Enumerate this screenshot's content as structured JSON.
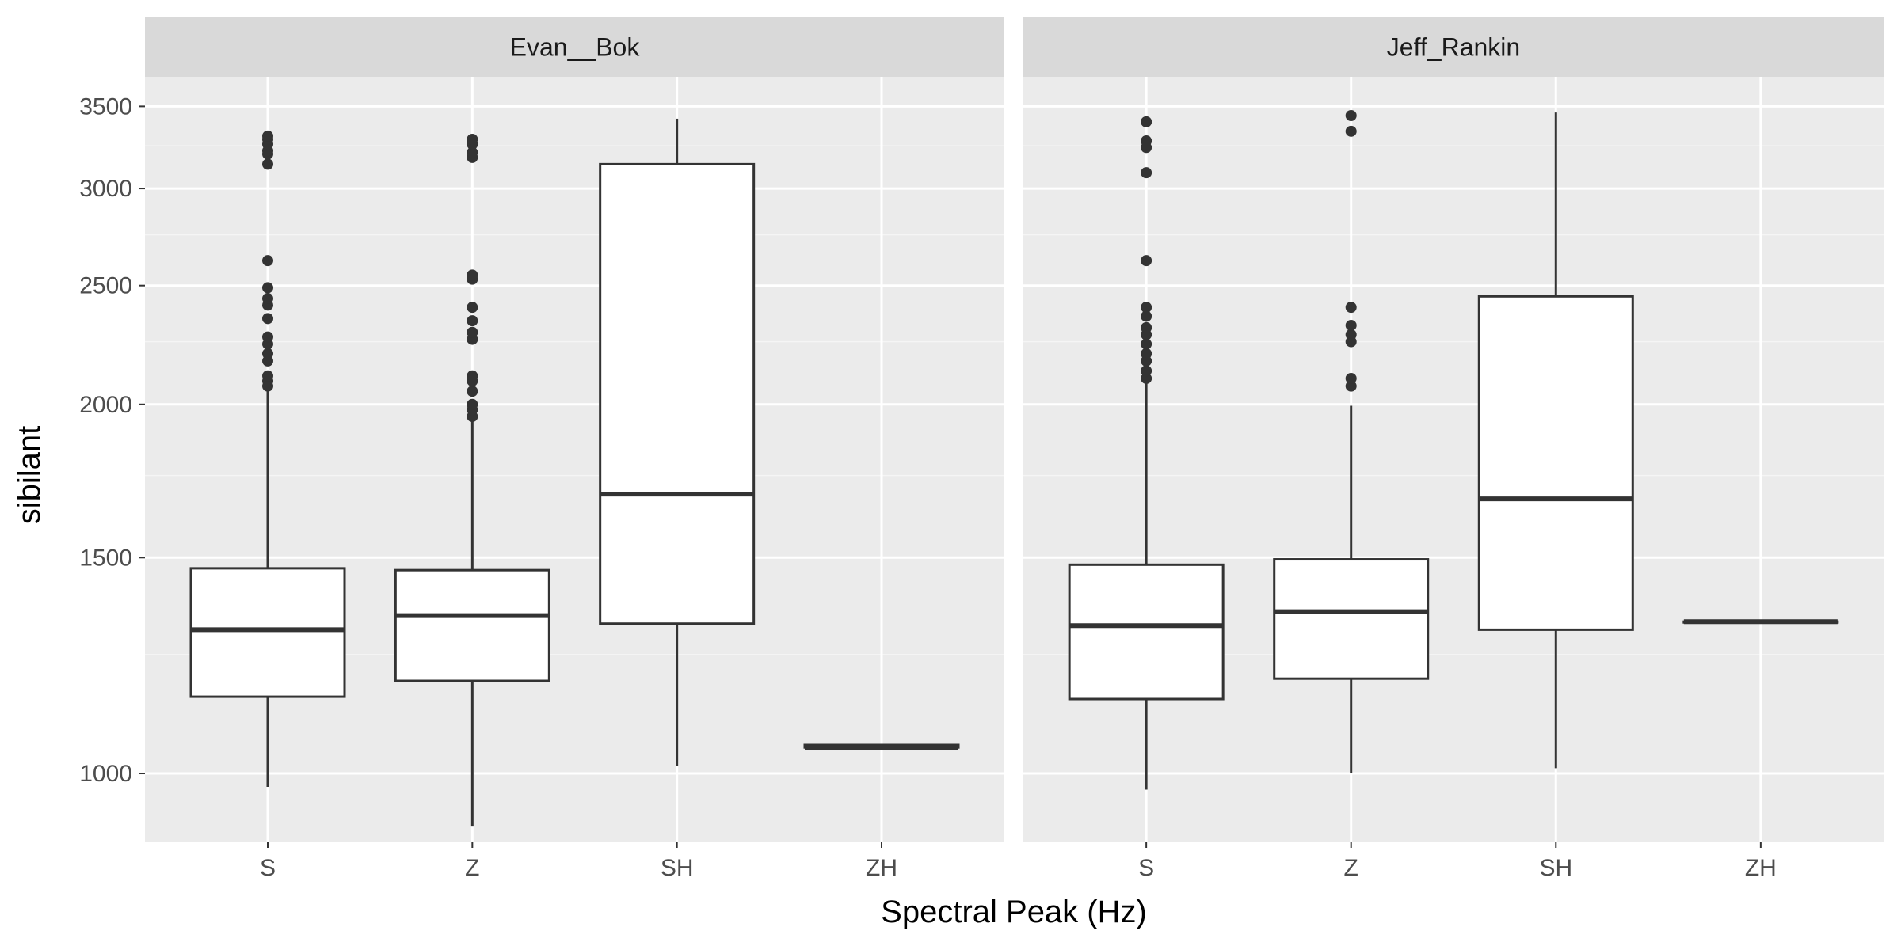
{
  "chart_data": {
    "type": "boxplot",
    "xlabel": "Spectral Peak (Hz)",
    "ylabel": "sibilant",
    "y_scale": "log",
    "ylim": [
      880,
      3700
    ],
    "y_ticks": [
      1000,
      1500,
      2000,
      2500,
      3000,
      3500
    ],
    "y_tick_labels": [
      "1000",
      "1500",
      "2000",
      "2500",
      "3000",
      "3500"
    ],
    "y_minor_ticks": [
      1250,
      1750,
      2250,
      2750,
      3250
    ],
    "categories": [
      "S",
      "Z",
      "SH",
      "ZH"
    ],
    "grid": true,
    "facets": [
      {
        "label": "Evan__Bok",
        "boxes": [
          {
            "category": "S",
            "lower_whisker": 975,
            "q1": 1155,
            "median": 1310,
            "q3": 1470,
            "upper_whisker": 2060,
            "outliers": [
              2070,
              2090,
              2110,
              2170,
              2200,
              2240,
              2270,
              2350,
              2410,
              2440,
              2490,
              2620,
              3140,
              3200,
              3220,
              3260,
              3290,
              3310
            ]
          },
          {
            "category": "Z",
            "lower_whisker": 905,
            "q1": 1190,
            "median": 1345,
            "q3": 1465,
            "upper_whisker": 1945,
            "outliers": [
              1955,
              1980,
              2000,
              2050,
              2090,
              2110,
              2260,
              2290,
              2340,
              2400,
              2530,
              2550,
              3180,
              3210,
              3260,
              3290
            ]
          },
          {
            "category": "SH",
            "lower_whisker": 1015,
            "q1": 1325,
            "median": 1690,
            "q3": 3140,
            "upper_whisker": 3420,
            "outliers": []
          },
          {
            "category": "ZH",
            "lower_whisker": 1050,
            "q1": 1050,
            "median": 1050,
            "q3": 1055,
            "upper_whisker": 1055,
            "outliers": []
          }
        ]
      },
      {
        "label": "Jeff_Rankin",
        "boxes": [
          {
            "category": "S",
            "lower_whisker": 970,
            "q1": 1150,
            "median": 1320,
            "q3": 1480,
            "upper_whisker": 2090,
            "outliers": [
              2100,
              2130,
              2170,
              2200,
              2240,
              2280,
              2310,
              2360,
              2400,
              2620,
              3090,
              3240,
              3280,
              3400
            ]
          },
          {
            "category": "Z",
            "lower_whisker": 1000,
            "q1": 1195,
            "median": 1355,
            "q3": 1495,
            "upper_whisker": 1995,
            "outliers": [
              2070,
              2100,
              2250,
              2280,
              2320,
              2400,
              3340,
              3440
            ]
          },
          {
            "category": "SH",
            "lower_whisker": 1010,
            "q1": 1310,
            "median": 1675,
            "q3": 2450,
            "upper_whisker": 3460,
            "outliers": []
          },
          {
            "category": "ZH",
            "lower_whisker": 1330,
            "q1": 1330,
            "median": 1330,
            "q3": 1330,
            "upper_whisker": 1330,
            "outliers": []
          }
        ]
      }
    ]
  }
}
